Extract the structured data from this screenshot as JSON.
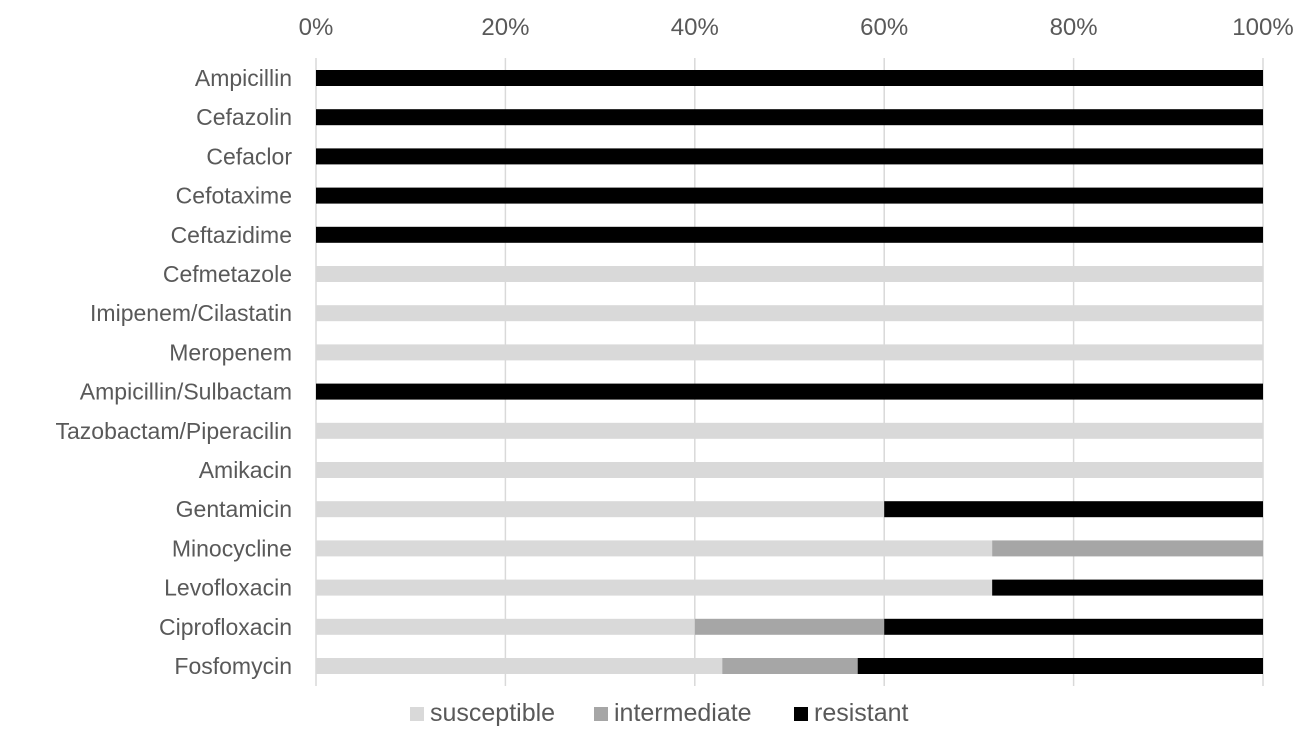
{
  "chart_data": {
    "type": "bar",
    "orientation": "horizontal",
    "stacked": "percent",
    "categories": [
      "Ampicillin",
      "Cefazolin",
      "Cefaclor",
      "Cefotaxime",
      "Ceftazidime",
      "Cefmetazole",
      "Imipenem/Cilastatin",
      "Meropenem",
      "Ampicillin/Sulbactam",
      "Tazobactam/Piperacilin",
      "Amikacin",
      "Gentamicin",
      "Minocycline",
      "Levofloxacin",
      "Ciprofloxacin",
      "Fosfomycin"
    ],
    "series": [
      {
        "name": "susceptible",
        "color": "#d9d9d9",
        "values": [
          0,
          0,
          0,
          0,
          0,
          100,
          100,
          100,
          0,
          100,
          100,
          60,
          71.4,
          71.4,
          40,
          42.9
        ]
      },
      {
        "name": "intermediate",
        "color": "#a6a6a6",
        "values": [
          0,
          0,
          0,
          0,
          0,
          0,
          0,
          0,
          0,
          0,
          0,
          0,
          28.6,
          0,
          20,
          14.3
        ]
      },
      {
        "name": "resistant",
        "color": "#000000",
        "values": [
          100,
          100,
          100,
          100,
          100,
          0,
          0,
          0,
          100,
          0,
          0,
          40,
          0,
          28.6,
          40,
          42.8
        ]
      }
    ],
    "xlim": [
      0,
      100
    ],
    "x_ticks": [
      "0%",
      "20%",
      "40%",
      "60%",
      "80%",
      "100%"
    ],
    "x_axis_position": "top",
    "grid": true,
    "legend_position": "bottom"
  }
}
